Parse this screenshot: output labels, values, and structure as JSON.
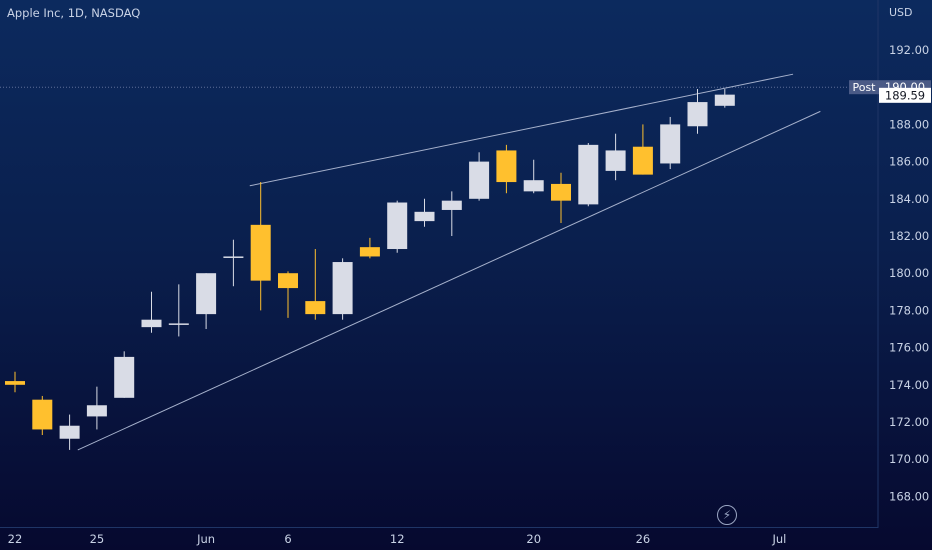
{
  "header": {
    "symbol_title": "Apple Inc, 1D, NASDAQ",
    "currency": "USD"
  },
  "price_labels": {
    "post_tag": "Post",
    "post_price": "190.00",
    "last_price": "189.59"
  },
  "icons": {
    "lightning": "lightning-icon"
  },
  "colors": {
    "bullish": "#d9dce6",
    "bearish": "#ffc02e",
    "trendline": "#a6b1cc",
    "axis_text": "#c9d3e6",
    "last_price_bg": "#ffffff"
  },
  "chart_data": {
    "type": "candlestick",
    "title": "Apple Inc, 1D, NASDAQ",
    "ylabel": "USD",
    "ylim": [
      166.6,
      193.5
    ],
    "yticks": [
      "192.00",
      "190.00",
      "188.00",
      "186.00",
      "184.00",
      "182.00",
      "180.00",
      "178.00",
      "176.00",
      "174.00",
      "172.00",
      "170.00",
      "168.00"
    ],
    "xticks": [
      {
        "label": "22",
        "index": 0
      },
      {
        "label": "25",
        "index": 3
      },
      {
        "label": "Jun",
        "index": 7
      },
      {
        "label": "6",
        "index": 10
      },
      {
        "label": "12",
        "index": 14
      },
      {
        "label": "20",
        "index": 19
      },
      {
        "label": "26",
        "index": 23
      },
      {
        "label": "Jul",
        "index": 28
      }
    ],
    "candles": [
      {
        "o": 174.2,
        "h": 174.7,
        "l": 173.6,
        "c": 174.0
      },
      {
        "o": 173.2,
        "h": 173.4,
        "l": 171.3,
        "c": 171.6
      },
      {
        "o": 171.1,
        "h": 172.4,
        "l": 170.5,
        "c": 171.8
      },
      {
        "o": 172.3,
        "h": 173.9,
        "l": 171.6,
        "c": 172.9
      },
      {
        "o": 173.3,
        "h": 175.8,
        "l": 173.3,
        "c": 175.5
      },
      {
        "o": 177.1,
        "h": 179.0,
        "l": 176.8,
        "c": 177.5
      },
      {
        "o": 177.3,
        "h": 179.4,
        "l": 176.6,
        "c": 177.3
      },
      {
        "o": 177.8,
        "h": 180.0,
        "l": 177.0,
        "c": 180.0
      },
      {
        "o": 180.9,
        "h": 181.8,
        "l": 179.3,
        "c": 180.9
      },
      {
        "o": 182.6,
        "h": 184.9,
        "l": 178.0,
        "c": 179.6
      },
      {
        "o": 180.0,
        "h": 180.1,
        "l": 177.6,
        "c": 179.2
      },
      {
        "o": 178.5,
        "h": 181.3,
        "l": 177.5,
        "c": 177.8
      },
      {
        "o": 177.8,
        "h": 180.8,
        "l": 177.5,
        "c": 180.6
      },
      {
        "o": 181.4,
        "h": 181.9,
        "l": 180.8,
        "c": 180.9
      },
      {
        "o": 181.3,
        "h": 183.9,
        "l": 181.1,
        "c": 183.8
      },
      {
        "o": 182.8,
        "h": 184.0,
        "l": 182.5,
        "c": 183.3
      },
      {
        "o": 183.4,
        "h": 184.4,
        "l": 182.0,
        "c": 183.9
      },
      {
        "o": 184.0,
        "h": 186.5,
        "l": 183.9,
        "c": 186.0
      },
      {
        "o": 186.6,
        "h": 186.9,
        "l": 184.3,
        "c": 184.9
      },
      {
        "o": 184.4,
        "h": 186.1,
        "l": 184.3,
        "c": 185.0
      },
      {
        "o": 184.8,
        "h": 185.4,
        "l": 182.7,
        "c": 183.9
      },
      {
        "o": 183.7,
        "h": 187.0,
        "l": 183.6,
        "c": 186.9
      },
      {
        "o": 185.5,
        "h": 187.5,
        "l": 185.0,
        "c": 186.6
      },
      {
        "o": 186.8,
        "h": 188.0,
        "l": 185.3,
        "c": 185.3
      },
      {
        "o": 185.9,
        "h": 188.4,
        "l": 185.6,
        "c": 188.0
      },
      {
        "o": 187.9,
        "h": 189.9,
        "l": 187.5,
        "c": 189.2
      },
      {
        "o": 189.0,
        "h": 189.9,
        "l": 188.9,
        "c": 189.6
      }
    ],
    "trendlines": [
      {
        "x1": 8.6,
        "y1": 184.7,
        "x2": 28.5,
        "y2": 190.7
      },
      {
        "x1": 2.3,
        "y1": 170.5,
        "x2": 29.5,
        "y2": 188.7
      }
    ],
    "post_market_level": 190.0,
    "last_price": 189.59
  }
}
